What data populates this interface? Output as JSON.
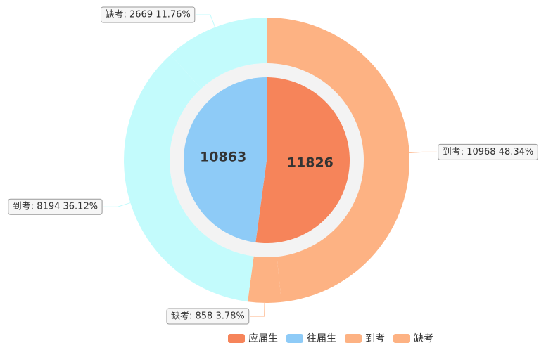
{
  "chart_data": {
    "type": "pie",
    "inner": {
      "categories": [
        "应届生",
        "往届生"
      ],
      "values": [
        11826,
        10863
      ],
      "colors": [
        "#f6845a",
        "#8ecbf7"
      ]
    },
    "outer": {
      "categories": [
        "到考",
        "缺考",
        "到考",
        "缺考"
      ],
      "values": [
        10968,
        858,
        8194,
        2669
      ],
      "value_labels": [
        "到考: 10968  48.34%",
        "缺考: 858  3.78%",
        "到考: 8194  36.12%",
        "缺考: 2669  11.76%"
      ],
      "colors": [
        "#fdb283",
        "#fdb283",
        "#c3fbfc",
        "#c3fbfc"
      ]
    },
    "legend_position": "bottom-right",
    "legend_items": [
      {
        "name": "应届生",
        "color": "#f6845a"
      },
      {
        "name": "往届生",
        "color": "#8ecbf7"
      },
      {
        "name": "到考",
        "color": "#fdb283"
      },
      {
        "name": "缺考",
        "color": "#fdb283"
      }
    ]
  }
}
